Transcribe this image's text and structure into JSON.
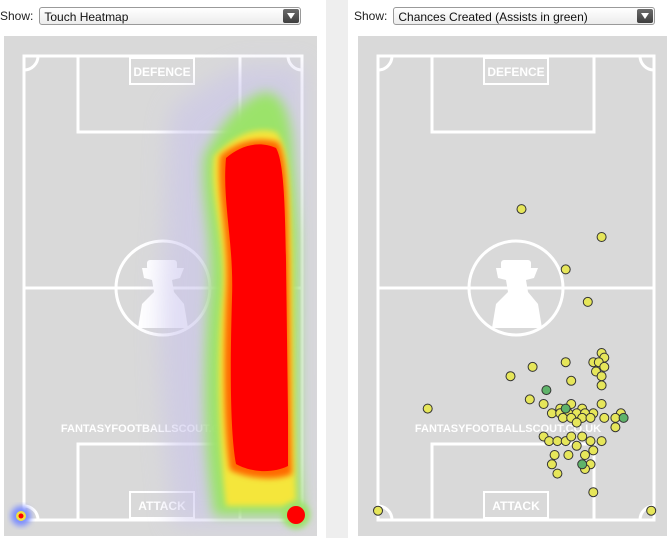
{
  "left_panel": {
    "show_label": "Show:",
    "selected": "Touch Heatmap",
    "defence_label": "DEFENCE",
    "attack_label": "ATTACK",
    "watermark": "FANTASYFOOTBALLSCOUT.CO.UK"
  },
  "right_panel": {
    "show_label": "Show:",
    "selected": "Chances Created (Assists in green)",
    "defence_label": "DEFENCE",
    "attack_label": "ATTACK",
    "watermark": "FANTASYFOOTBALLSCOUT.CO.UK"
  },
  "colors": {
    "pitch": "#d9d9d9",
    "chance": "#e6e65a",
    "assist": "#5fb36a",
    "heat_core": "#ff0000"
  },
  "chart_data": {
    "type": "scatter",
    "series": [
      {
        "name": "Chances Created",
        "points": [
          [
            0.52,
            0.33
          ],
          [
            0.81,
            0.39
          ],
          [
            0.68,
            0.46
          ],
          [
            0.76,
            0.53
          ],
          [
            0.56,
            0.67
          ],
          [
            0.68,
            0.66
          ],
          [
            0.81,
            0.64
          ],
          [
            0.78,
            0.66
          ],
          [
            0.82,
            0.65
          ],
          [
            0.8,
            0.66
          ],
          [
            0.82,
            0.67
          ],
          [
            0.79,
            0.68
          ],
          [
            0.81,
            0.69
          ],
          [
            0.48,
            0.69
          ],
          [
            0.7,
            0.7
          ],
          [
            0.81,
            0.71
          ],
          [
            0.18,
            0.76
          ],
          [
            0.55,
            0.74
          ],
          [
            0.6,
            0.75
          ],
          [
            0.66,
            0.76
          ],
          [
            0.7,
            0.75
          ],
          [
            0.74,
            0.76
          ],
          [
            0.81,
            0.75
          ],
          [
            0.88,
            0.77
          ],
          [
            0.78,
            0.77
          ],
          [
            0.63,
            0.77
          ],
          [
            0.66,
            0.77
          ],
          [
            0.69,
            0.77
          ],
          [
            0.72,
            0.77
          ],
          [
            0.75,
            0.77
          ],
          [
            0.67,
            0.78
          ],
          [
            0.7,
            0.78
          ],
          [
            0.74,
            0.78
          ],
          [
            0.77,
            0.78
          ],
          [
            0.82,
            0.78
          ],
          [
            0.72,
            0.79
          ],
          [
            0.86,
            0.8
          ],
          [
            0.6,
            0.82
          ],
          [
            0.62,
            0.83
          ],
          [
            0.65,
            0.83
          ],
          [
            0.68,
            0.83
          ],
          [
            0.7,
            0.82
          ],
          [
            0.72,
            0.84
          ],
          [
            0.77,
            0.83
          ],
          [
            0.81,
            0.83
          ],
          [
            0.74,
            0.82
          ],
          [
            0.78,
            0.85
          ],
          [
            0.69,
            0.86
          ],
          [
            0.75,
            0.86
          ],
          [
            0.63,
            0.88
          ],
          [
            0.65,
            0.9
          ],
          [
            0.77,
            0.88
          ],
          [
            0.75,
            0.89
          ],
          [
            0.86,
            0.78
          ],
          [
            0.64,
            0.86
          ],
          [
            0.78,
            0.94
          ],
          [
            0.0,
            0.98
          ],
          [
            0.99,
            0.98
          ]
        ]
      },
      {
        "name": "Assists",
        "points": [
          [
            0.61,
            0.72
          ],
          [
            0.89,
            0.78
          ],
          [
            0.74,
            0.88
          ],
          [
            0.68,
            0.76
          ]
        ]
      }
    ]
  }
}
